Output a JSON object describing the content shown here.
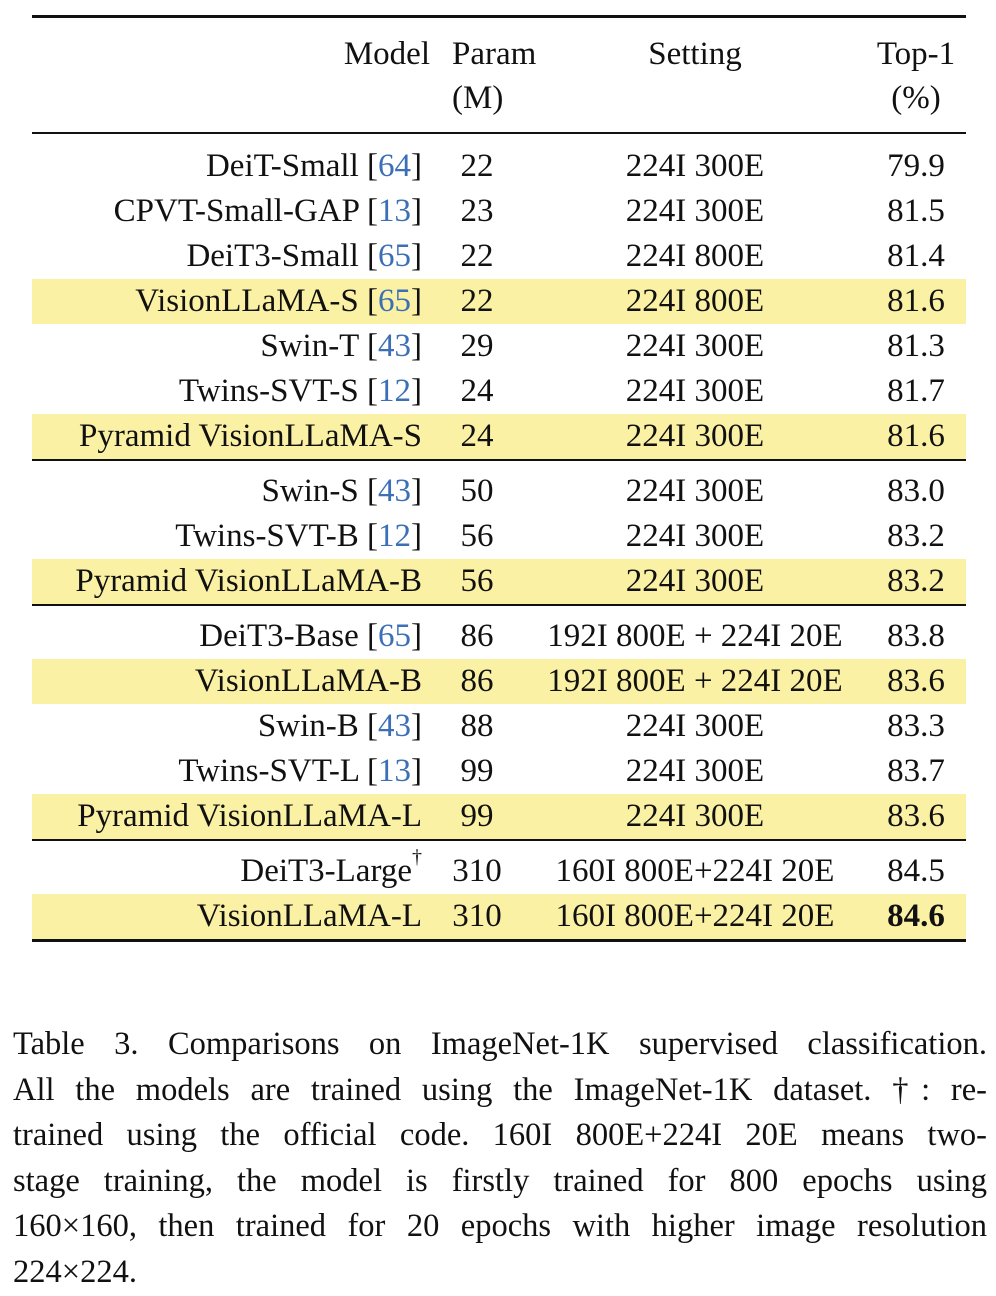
{
  "table": {
    "headers": {
      "model": "Model",
      "param_line1": "Param",
      "param_line2": "(M)",
      "setting": "Setting",
      "top1_line1": "Top-1",
      "top1_line2": "(%)"
    },
    "groups": [
      [
        {
          "name": "DeiT-Small",
          "cite": "64",
          "param": "22",
          "setting": "224I 300E",
          "top1": "79.9",
          "highlight": false
        },
        {
          "name": "CPVT-Small-GAP",
          "cite": "13",
          "param": "23",
          "setting": "224I 300E",
          "top1": "81.5",
          "highlight": false
        },
        {
          "name": "DeiT3-Small",
          "cite": "65",
          "param": "22",
          "setting": "224I 800E",
          "top1": "81.4",
          "highlight": false
        },
        {
          "name": "VisionLLaMA-S",
          "cite": "65",
          "param": "22",
          "setting": "224I 800E",
          "top1": "81.6",
          "highlight": true
        },
        {
          "name": "Swin-T",
          "cite": "43",
          "param": "29",
          "setting": "224I 300E",
          "top1": "81.3",
          "highlight": false
        },
        {
          "name": "Twins-SVT-S",
          "cite": "12",
          "param": "24",
          "setting": "224I 300E",
          "top1": "81.7",
          "highlight": false
        },
        {
          "name": "Pyramid VisionLLaMA-S",
          "cite": "",
          "param": "24",
          "setting": "224I 300E",
          "top1": "81.6",
          "highlight": true
        }
      ],
      [
        {
          "name": "Swin-S",
          "cite": "43",
          "param": "50",
          "setting": "224I 300E",
          "top1": "83.0",
          "highlight": false
        },
        {
          "name": "Twins-SVT-B",
          "cite": "12",
          "param": "56",
          "setting": "224I 300E",
          "top1": "83.2",
          "highlight": false
        },
        {
          "name": "Pyramid VisionLLaMA-B",
          "cite": "",
          "param": "56",
          "setting": "224I 300E",
          "top1": "83.2",
          "highlight": true
        }
      ],
      [
        {
          "name": "DeiT3-Base",
          "cite": "65",
          "param": "86",
          "setting": "192I 800E + 224I 20E",
          "top1": "83.8",
          "highlight": false
        },
        {
          "name": "VisionLLaMA-B",
          "cite": "",
          "param": "86",
          "setting": "192I 800E + 224I 20E",
          "top1": "83.6",
          "highlight": true
        },
        {
          "name": "Swin-B",
          "cite": "43",
          "param": "88",
          "setting": "224I 300E",
          "top1": "83.3",
          "highlight": false
        },
        {
          "name": "Twins-SVT-L",
          "cite": "13",
          "param": "99",
          "setting": "224I 300E",
          "top1": "83.7",
          "highlight": false
        },
        {
          "name": "Pyramid VisionLLaMA-L",
          "cite": "",
          "param": "99",
          "setting": "224I 300E",
          "top1": "83.6",
          "highlight": true
        }
      ],
      [
        {
          "name": "DeiT3-Large",
          "cite": "",
          "dagger": "†",
          "param": "310",
          "setting": "160I 800E+224I 20E",
          "top1": "84.5",
          "highlight": false
        },
        {
          "name": "VisionLLaMA-L",
          "cite": "",
          "param": "310",
          "setting": "160I 800E+224I 20E",
          "top1": "84.6",
          "highlight": true,
          "bold_top1": true
        }
      ]
    ]
  },
  "caption": {
    "lines": [
      "Table 3. Comparisons on ImageNet-1K supervised classification.",
      "All the models are trained using the ImageNet-1K dataset. †: re-",
      "trained using the official code. 160I 800E+224I 20E means two-",
      "stage training, the model is firstly trained for 800 epochs using",
      "160×160, then trained for 20 epochs with higher image resolution",
      "224×224."
    ]
  }
}
